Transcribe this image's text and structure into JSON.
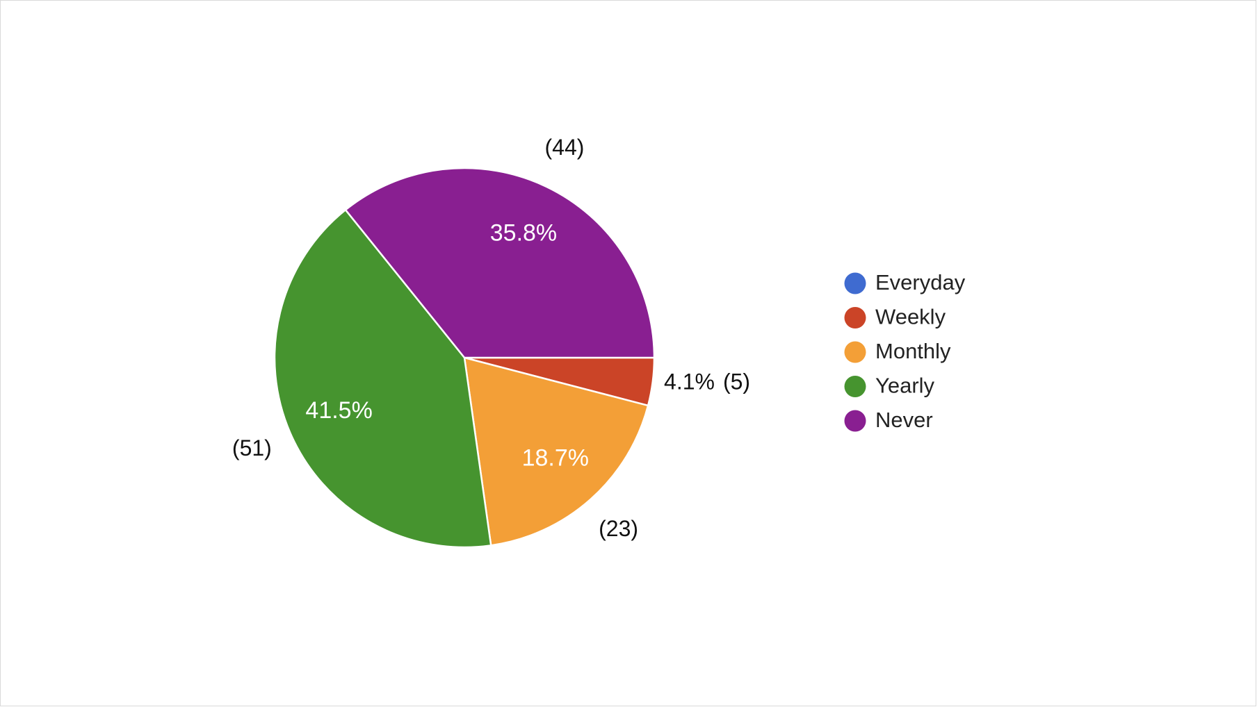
{
  "chart_data": {
    "type": "pie",
    "categories": [
      "Everyday",
      "Weekly",
      "Monthly",
      "Yearly",
      "Never"
    ],
    "values": [
      0,
      5,
      23,
      51,
      44
    ],
    "value_labels": [
      null,
      "(5)",
      "(23)",
      "(51)",
      "(44)"
    ],
    "percent_labels": [
      null,
      "4.1%",
      "18.7%",
      "41.5%",
      "35.8%"
    ],
    "colors": [
      "#3f6bd0",
      "#cb4427",
      "#f39f37",
      "#46942f",
      "#891f91"
    ],
    "legend": "right"
  }
}
